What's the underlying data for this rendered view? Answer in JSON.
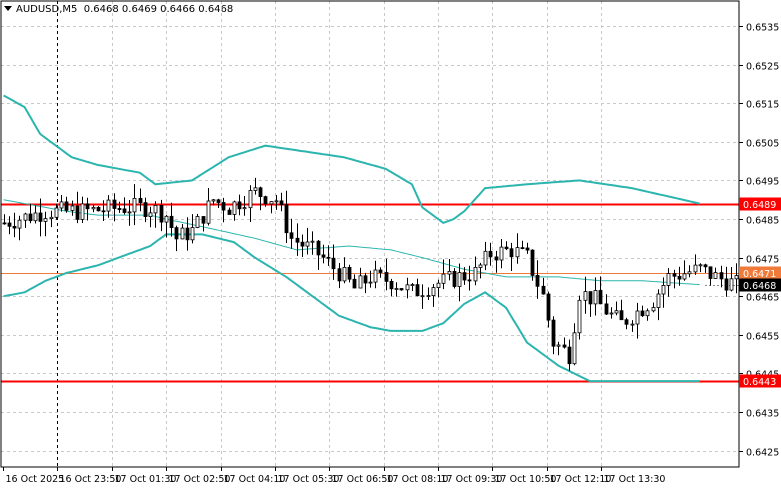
{
  "header": {
    "symbol_tf": "AUDUSD,M5",
    "ohlc": "0.6468 0.6469 0.6466 0.6468"
  },
  "colors": {
    "background": "#ffffff",
    "grid": "#c8c8c8",
    "candle": "#000000",
    "band": "#2bb5ae",
    "support_resistance": "#ff0000",
    "marker_line": "#f07a3a",
    "price_tag_text": "#ffffff"
  },
  "chart_data": {
    "type": "candlestick",
    "symbol": "AUDUSD",
    "timeframe": "M5",
    "y_ticks": [
      "0.6535",
      "0.6525",
      "0.6515",
      "0.6505",
      "0.6495",
      "0.6485",
      "0.6475",
      "0.6465",
      "0.6455",
      "0.6445",
      "0.6435",
      "0.6425"
    ],
    "ylim": [
      0.64195,
      0.65425
    ],
    "x_ticks": [
      "16 Oct 2025",
      "16 Oct 23:50",
      "17 Oct 01:30",
      "17 Oct 02:50",
      "17 Oct 04:10",
      "17 Oct 05:30",
      "17 Oct 06:50",
      "17 Oct 08:10",
      "17 Oct 09:30",
      "17 Oct 10:50",
      "17 Oct 12:10",
      "17 Oct 13:30"
    ],
    "grid": true,
    "horizontal_levels": [
      {
        "price": 0.6489,
        "label": "0.6489",
        "color": "#ff0000"
      },
      {
        "price": 0.6471,
        "label": "0.6471",
        "color": "#f07a3a"
      },
      {
        "price": 0.6443,
        "label": "0.6443",
        "color": "#ff0000"
      }
    ],
    "current_price": {
      "price": 0.6468,
      "label": "0.6468"
    },
    "session_separator_x": "16 Oct 23:50",
    "close_path": [
      [
        0,
        0.6484
      ],
      [
        8,
        0.6487
      ],
      [
        15,
        0.6487
      ],
      [
        23,
        0.6488
      ],
      [
        28,
        0.6488
      ],
      [
        31,
        0.6486
      ],
      [
        33,
        0.648
      ],
      [
        36,
        0.6482
      ],
      [
        40,
        0.649
      ],
      [
        43,
        0.6488
      ],
      [
        48,
        0.6492
      ],
      [
        52,
        0.649
      ],
      [
        55,
        0.648
      ],
      [
        60,
        0.6476
      ],
      [
        65,
        0.647
      ],
      [
        67,
        0.6467
      ],
      [
        70,
        0.647
      ],
      [
        74,
        0.6469
      ],
      [
        78,
        0.6466
      ],
      [
        82,
        0.6468
      ],
      [
        87,
        0.647
      ],
      [
        90,
        0.6471
      ],
      [
        93,
        0.6476
      ],
      [
        97,
        0.6477
      ],
      [
        100,
        0.6475
      ],
      [
        103,
        0.6465
      ],
      [
        105,
        0.6453
      ],
      [
        108,
        0.645
      ],
      [
        110,
        0.6466
      ],
      [
        113,
        0.6464
      ],
      [
        116,
        0.646
      ],
      [
        118,
        0.6458
      ],
      [
        121,
        0.6461
      ],
      [
        124,
        0.6464
      ],
      [
        127,
        0.647
      ],
      [
        130,
        0.6471
      ],
      [
        133,
        0.6472
      ],
      [
        136,
        0.647
      ],
      [
        140,
        0.6468
      ]
    ],
    "bollinger": {
      "upper": [
        [
          0,
          0.6517
        ],
        [
          4,
          0.6514
        ],
        [
          7,
          0.6507
        ],
        [
          10,
          0.6504
        ],
        [
          13,
          0.6501
        ],
        [
          18,
          0.6499
        ],
        [
          26,
          0.6497
        ],
        [
          29,
          0.6494
        ],
        [
          36,
          0.6495
        ],
        [
          43,
          0.6501
        ],
        [
          50,
          0.6504
        ],
        [
          55,
          0.6503
        ],
        [
          65,
          0.6501
        ],
        [
          73,
          0.6498
        ],
        [
          78,
          0.6494
        ],
        [
          80,
          0.6488
        ],
        [
          84,
          0.6484
        ],
        [
          86,
          0.6485
        ],
        [
          88,
          0.6487
        ],
        [
          92,
          0.6493
        ],
        [
          100,
          0.6494
        ],
        [
          110,
          0.6495
        ],
        [
          120,
          0.6493
        ],
        [
          133,
          0.6489
        ]
      ],
      "middle": [
        [
          0,
          0.649
        ],
        [
          4,
          0.6489
        ],
        [
          8,
          0.6488
        ],
        [
          12,
          0.6487
        ],
        [
          18,
          0.6486
        ],
        [
          28,
          0.6486
        ],
        [
          31,
          0.6485
        ],
        [
          38,
          0.6483
        ],
        [
          48,
          0.648
        ],
        [
          56,
          0.6477
        ],
        [
          66,
          0.6478
        ],
        [
          74,
          0.6477
        ],
        [
          80,
          0.6475
        ],
        [
          88,
          0.6472
        ],
        [
          96,
          0.647
        ],
        [
          106,
          0.647
        ],
        [
          114,
          0.6469
        ],
        [
          122,
          0.6469
        ],
        [
          133,
          0.6468
        ]
      ],
      "lower": [
        [
          0,
          0.6465
        ],
        [
          4,
          0.6466
        ],
        [
          8,
          0.6469
        ],
        [
          12,
          0.6471
        ],
        [
          18,
          0.6473
        ],
        [
          24,
          0.6476
        ],
        [
          28,
          0.6478
        ],
        [
          31,
          0.6481
        ],
        [
          38,
          0.6481
        ],
        [
          44,
          0.6479
        ],
        [
          48,
          0.6475
        ],
        [
          54,
          0.647
        ],
        [
          59,
          0.6465
        ],
        [
          64,
          0.646
        ],
        [
          70,
          0.6457
        ],
        [
          74,
          0.6456
        ],
        [
          80,
          0.6456
        ],
        [
          84,
          0.6458
        ],
        [
          88,
          0.6463
        ],
        [
          92,
          0.6466
        ],
        [
          96,
          0.6462
        ],
        [
          100,
          0.6453
        ],
        [
          106,
          0.6447
        ],
        [
          112,
          0.6443
        ],
        [
          125,
          0.6443
        ],
        [
          133,
          0.6443
        ]
      ]
    }
  }
}
